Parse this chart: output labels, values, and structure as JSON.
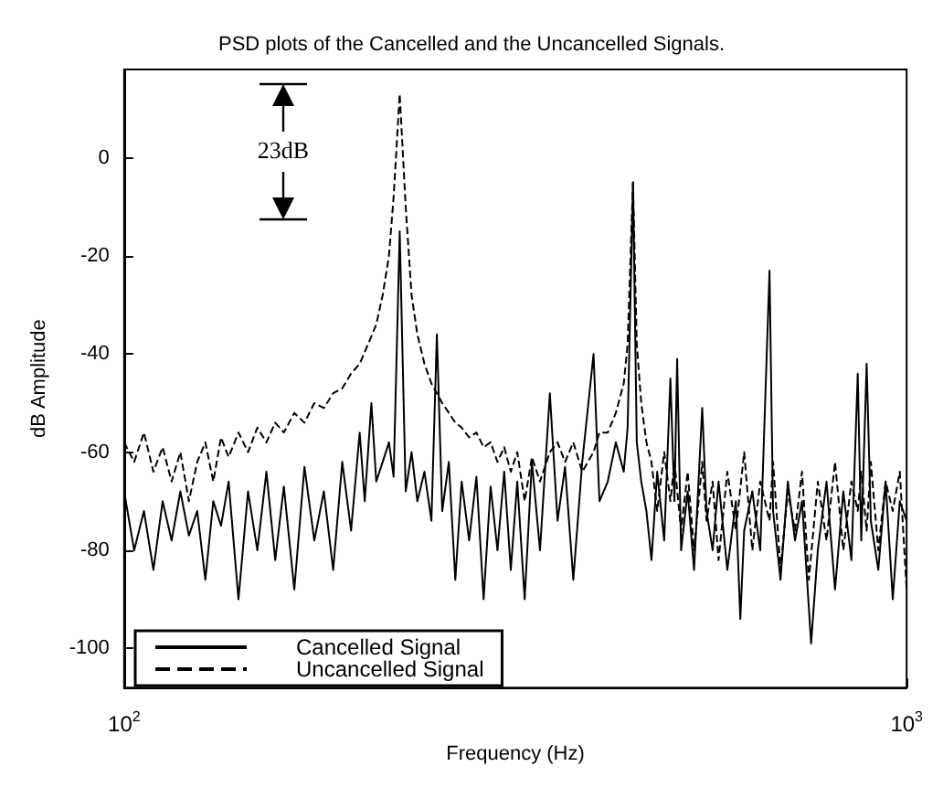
{
  "chart_data": {
    "type": "line",
    "title": "PSD plots of the Cancelled and the Uncancelled Signals.",
    "xlabel": "Frequency (Hz)",
    "ylabel": "dB Amplitude",
    "log": "x",
    "xlim": [
      100,
      1000
    ],
    "xticks": [
      {
        "value": 100,
        "label": "10$^{2}$"
      },
      {
        "value": 1000,
        "label": "10$^{3}$"
      }
    ],
    "ylim": [
      -108,
      18
    ],
    "yticks": [
      -100,
      -80,
      -60,
      -40,
      -20,
      0
    ],
    "grid": false,
    "legend": "bottom left",
    "annotations": [
      "23dB"
    ],
    "series": [
      {
        "name": "Cancelled Signal",
        "color": "#000000",
        "line_style": "solid",
        "x": [
          100,
          103,
          106,
          109,
          112,
          115,
          118,
          121,
          124,
          127,
          130,
          133,
          136,
          140,
          144,
          148,
          152,
          156,
          160,
          165,
          170,
          175,
          180,
          185,
          190,
          195,
          200,
          203,
          207,
          210,
          214,
          218,
          221,
          225,
          229,
          233,
          237,
          242,
          247,
          251,
          255,
          260,
          265,
          270,
          276,
          282,
          288,
          294,
          300,
          306,
          312,
          318,
          325,
          332,
          340,
          350,
          358,
          366,
          375,
          385,
          398,
          405,
          415,
          425,
          435,
          440,
          447,
          452,
          458,
          465,
          472,
          480,
          490,
          499,
          505,
          509,
          515,
          525,
          535,
          548,
          555,
          565,
          575,
          590,
          605,
          613,
          620,
          635,
          650,
          668,
          675,
          690,
          705,
          720,
          735,
          755,
          770,
          790,
          810,
          830,
          850,
          866,
          875,
          889,
          900,
          920,
          940,
          960,
          980,
          1000
        ],
        "values": [
          -68,
          -80,
          -72,
          -84,
          -70,
          -78,
          -68,
          -77,
          -72,
          -86,
          -70,
          -75,
          -66,
          -90,
          -68,
          -80,
          -64,
          -82,
          -67,
          -88,
          -63,
          -78,
          -68,
          -84,
          -62,
          -76,
          -56,
          -70,
          -50,
          -66,
          -62,
          -58,
          -65,
          -15,
          -68,
          -60,
          -70,
          -64,
          -74,
          -36,
          -72,
          -62,
          -86,
          -66,
          -78,
          -65,
          -90,
          -67,
          -80,
          -64,
          -84,
          -66,
          -90,
          -62,
          -80,
          -48,
          -74,
          -63,
          -86,
          -62,
          -40,
          -70,
          -66,
          -58,
          -64,
          -55,
          -5,
          -58,
          -66,
          -72,
          -82,
          -64,
          -78,
          -45,
          -70,
          -41,
          -80,
          -68,
          -84,
          -51,
          -72,
          -80,
          -66,
          -84,
          -70,
          -94,
          -76,
          -68,
          -80,
          -23,
          -72,
          -86,
          -66,
          -78,
          -70,
          -99,
          -80,
          -66,
          -88,
          -68,
          -82,
          -44,
          -78,
          -42,
          -74,
          -84,
          -66,
          -90,
          -70,
          -74
        ]
      },
      {
        "name": "Uncancelled Signal",
        "color": "#000000",
        "line_style": "dashed",
        "x": [
          100,
          103,
          106,
          109,
          112,
          115,
          118,
          121,
          124,
          127,
          130,
          133,
          136,
          140,
          144,
          148,
          152,
          156,
          160,
          165,
          170,
          175,
          180,
          185,
          190,
          195,
          200,
          205,
          210,
          214,
          218,
          221,
          225,
          229,
          233,
          237,
          242,
          247,
          251,
          255,
          260,
          265,
          270,
          276,
          282,
          288,
          294,
          300,
          306,
          312,
          318,
          325,
          332,
          340,
          350,
          358,
          366,
          375,
          385,
          398,
          405,
          415,
          425,
          435,
          440,
          447,
          452,
          458,
          465,
          472,
          480,
          490,
          499,
          505,
          515,
          525,
          535,
          548,
          555,
          565,
          575,
          590,
          605,
          620,
          635,
          650,
          668,
          675,
          690,
          705,
          720,
          735,
          750,
          770,
          790,
          810,
          830,
          850,
          866,
          875,
          889,
          900,
          920,
          940,
          960,
          980,
          1000
        ],
        "values": [
          -58,
          -62,
          -56,
          -64,
          -59,
          -66,
          -60,
          -70,
          -62,
          -58,
          -66,
          -57,
          -61,
          -56,
          -60,
          -55,
          -58,
          -54,
          -56,
          -52,
          -54,
          -50,
          -51,
          -48,
          -47,
          -44,
          -42,
          -38,
          -34,
          -28,
          -20,
          -8,
          13,
          -10,
          -28,
          -36,
          -42,
          -46,
          -48,
          -50,
          -52,
          -54,
          -55,
          -57,
          -56,
          -59,
          -58,
          -62,
          -59,
          -64,
          -60,
          -70,
          -61,
          -66,
          -60,
          -58,
          -62,
          -58,
          -64,
          -60,
          -56,
          -56,
          -52,
          -46,
          -38,
          -5,
          -38,
          -50,
          -58,
          -62,
          -72,
          -60,
          -70,
          -62,
          -76,
          -64,
          -80,
          -62,
          -74,
          -66,
          -82,
          -64,
          -76,
          -60,
          -80,
          -66,
          -74,
          -62,
          -84,
          -68,
          -76,
          -64,
          -86,
          -66,
          -78,
          -62,
          -80,
          -66,
          -72,
          -64,
          -76,
          -62,
          -80,
          -66,
          -72,
          -64,
          -88
        ]
      }
    ]
  }
}
